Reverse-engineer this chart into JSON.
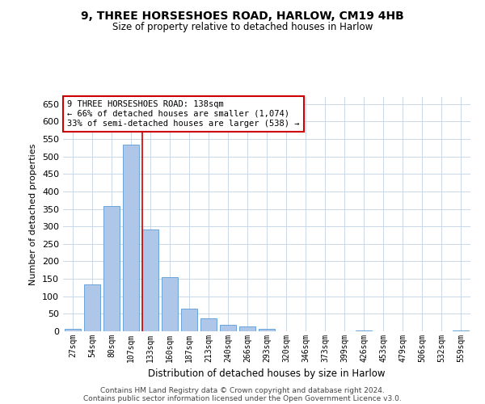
{
  "title": "9, THREE HORSESHOES ROAD, HARLOW, CM19 4HB",
  "subtitle": "Size of property relative to detached houses in Harlow",
  "xlabel": "Distribution of detached houses by size in Harlow",
  "ylabel": "Number of detached properties",
  "bar_color": "#aec6e8",
  "bar_edge_color": "#5b9bd5",
  "grid_color": "#c8d8e8",
  "background_color": "#ffffff",
  "annotation_box_color": "#ffffff",
  "annotation_box_edge": "#cc0000",
  "vline_color": "#cc0000",
  "bin_labels": [
    "27sqm",
    "54sqm",
    "80sqm",
    "107sqm",
    "133sqm",
    "160sqm",
    "187sqm",
    "213sqm",
    "240sqm",
    "266sqm",
    "293sqm",
    "320sqm",
    "346sqm",
    "373sqm",
    "399sqm",
    "426sqm",
    "453sqm",
    "479sqm",
    "506sqm",
    "532sqm",
    "559sqm"
  ],
  "bar_heights": [
    8,
    133,
    358,
    533,
    290,
    155,
    65,
    38,
    18,
    13,
    8,
    0,
    0,
    0,
    0,
    3,
    0,
    0,
    0,
    0,
    2
  ],
  "ylim": [
    0,
    670
  ],
  "yticks": [
    0,
    50,
    100,
    150,
    200,
    250,
    300,
    350,
    400,
    450,
    500,
    550,
    600,
    650
  ],
  "vline_x_bin": 4,
  "annotation_line1": "9 THREE HORSESHOES ROAD: 138sqm",
  "annotation_line2": "← 66% of detached houses are smaller (1,074)",
  "annotation_line3": "33% of semi-detached houses are larger (538) →",
  "footer1": "Contains HM Land Registry data © Crown copyright and database right 2024.",
  "footer2": "Contains public sector information licensed under the Open Government Licence v3.0."
}
